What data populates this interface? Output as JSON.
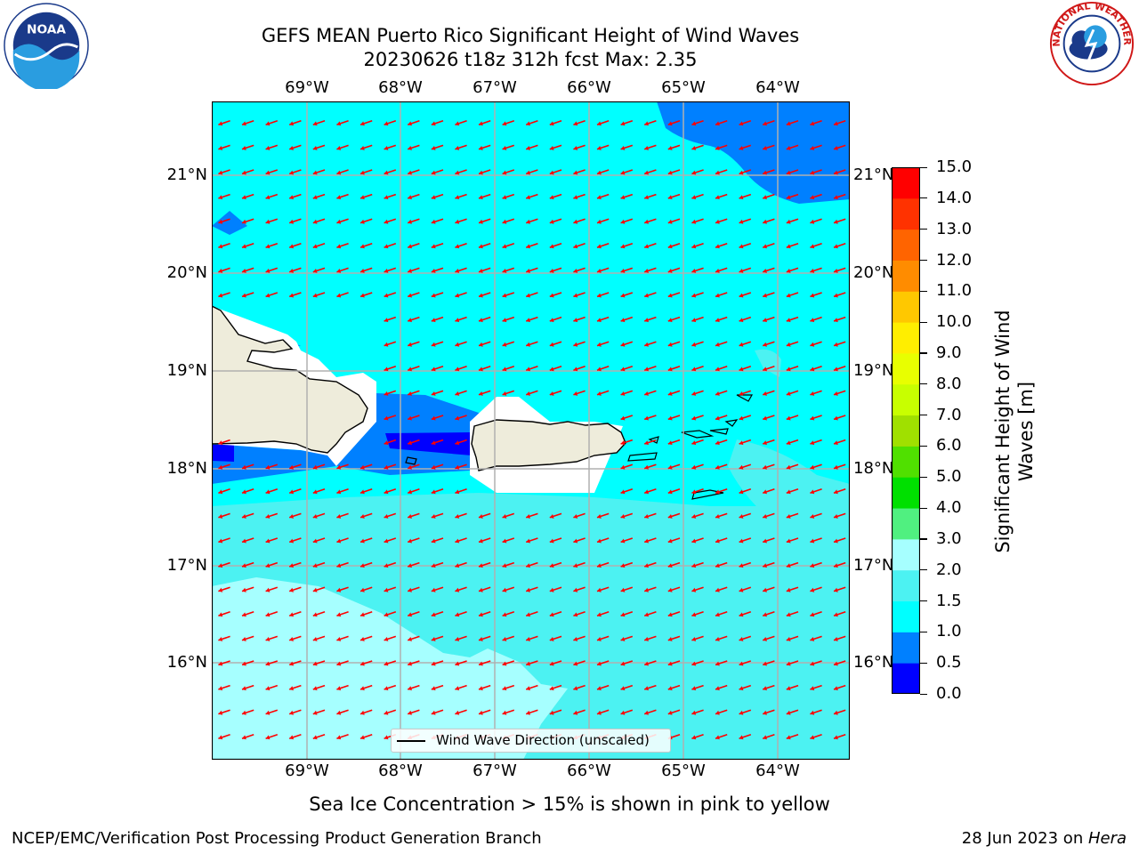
{
  "header": {
    "title_line1": "GEFS MEAN Puerto Rico Significant Height of Wind Waves",
    "title_line2": "20230626 t18z 312h fcst   Max: 2.35"
  },
  "logos": {
    "left": {
      "icon": "noaa-logo-icon",
      "text": "NOAA"
    },
    "right": {
      "icon": "national-weather-service-logo-icon",
      "text": "NATIONAL WEATHER SERVICE"
    }
  },
  "map": {
    "lon_labels": [
      "69°W",
      "68°W",
      "67°W",
      "66°W",
      "65°W",
      "64°W"
    ],
    "lat_labels": [
      "21°N",
      "20°N",
      "19°N",
      "18°N",
      "17°N",
      "16°N"
    ],
    "legend_label": "Wind Wave Direction (unscaled)",
    "wave_arrow_direction": "west-southwest",
    "colors": {
      "land": "#eeecdb",
      "ocean_1_1_5": "#00ffff",
      "ocean_1_5_2": "#4cf2f2",
      "ocean_2_3": "#a6ffff",
      "ocean_0_5_1": "#0080ff",
      "ocean_0_0_5": "#0000ff",
      "arrow": "#ff0000"
    }
  },
  "colorbar": {
    "title_line1": "Significant Height of Wind",
    "title_line2": "Waves [m]",
    "bounds": [
      "0.0",
      "0.5",
      "1.0",
      "1.5",
      "2.0",
      "3.0",
      "4.0",
      "5.0",
      "6.0",
      "7.0",
      "8.0",
      "9.0",
      "10.0",
      "11.0",
      "12.0",
      "13.0",
      "14.0",
      "15.0"
    ],
    "colors": [
      "#0000ff",
      "#0080ff",
      "#00ffff",
      "#4cf2f2",
      "#a6ffff",
      "#50f080",
      "#00e000",
      "#50e000",
      "#a0e000",
      "#c8ff00",
      "#e8ff00",
      "#ffee00",
      "#ffc800",
      "#ff8c00",
      "#ff6400",
      "#ff3200",
      "#ff0000"
    ]
  },
  "footer": {
    "note": "Sea Ice Concentration > 15% is shown in pink to yellow",
    "left": "NCEP/EMC/Verification Post Processing Product Generation Branch",
    "right_prefix": "28 Jun 2023 on ",
    "right_italic": "Hera"
  }
}
